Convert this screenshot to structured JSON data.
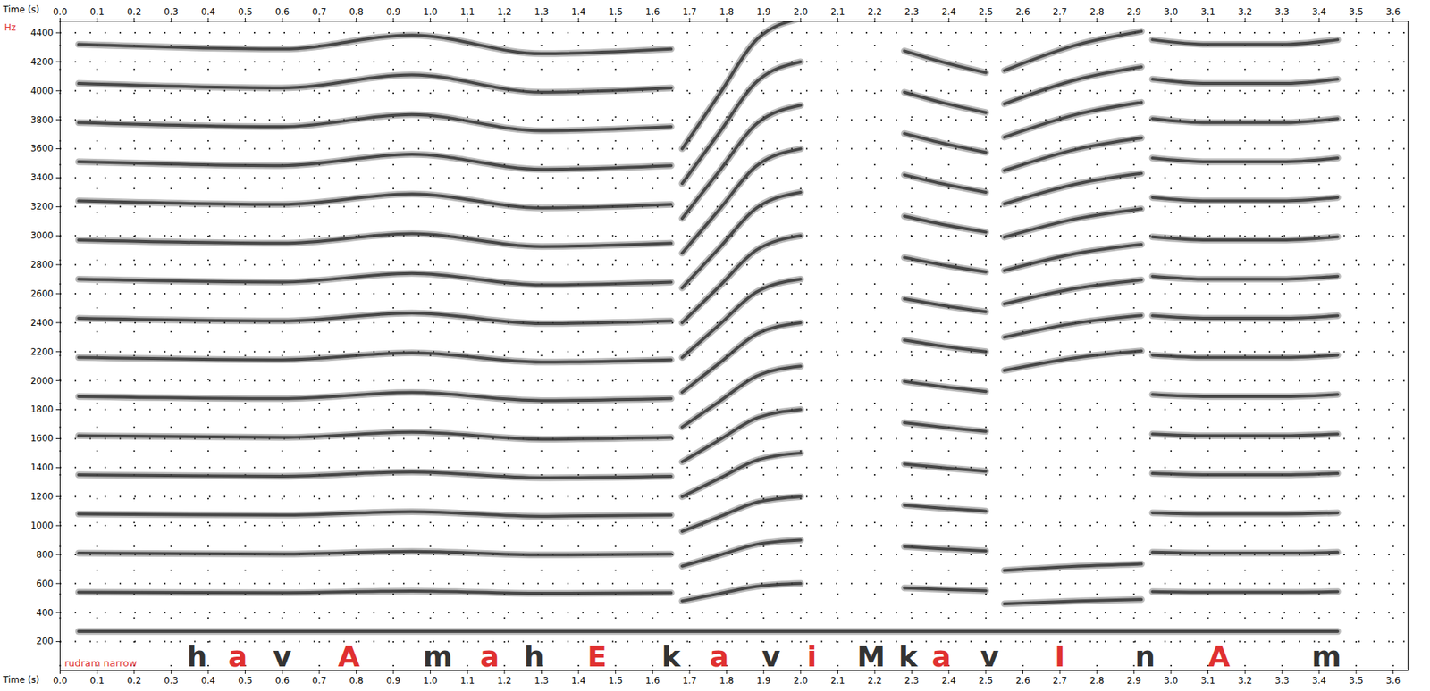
{
  "chart_data": {
    "type": "spectrogram",
    "xlabel": "Time (s)",
    "ylabel": "Hz",
    "caption": "rudram narrow",
    "xlim": [
      0,
      3.64
    ],
    "ylim": [
      0,
      4480
    ],
    "xticks": [
      {
        "value": 0,
        "label": "0.0"
      },
      0.1,
      0.2,
      0.3,
      0.4,
      0.5,
      0.6,
      0.7,
      0.8,
      0.9,
      {
        "value": 1,
        "label": "1.0"
      },
      1.1,
      1.2,
      1.3,
      1.4,
      1.5,
      1.6,
      1.7,
      1.8,
      1.9,
      {
        "value": 2,
        "label": "2.0"
      },
      2.1,
      2.2,
      2.3,
      2.4,
      2.5,
      2.6,
      2.7,
      2.8,
      2.9,
      {
        "value": 3,
        "label": "3.0"
      },
      3.1,
      3.2,
      3.3,
      3.4,
      3.5,
      3.6
    ],
    "yticks": [
      200,
      400,
      600,
      800,
      1000,
      1200,
      1400,
      1600,
      1800,
      2000,
      2200,
      2400,
      2600,
      2800,
      3000,
      3200,
      3400,
      3600,
      3800,
      4000,
      4200,
      4400
    ],
    "grid": true,
    "color": "#333333",
    "segments": [
      {
        "x": [
          0.05,
          3.45
        ],
        "tracks": [
          [
            270,
            270
          ]
        ]
      },
      {
        "x": [
          0.05,
          0.6,
          0.95,
          1.3,
          1.65
        ],
        "tracks": [
          [
            540,
            536,
            548,
            532,
            536
          ],
          [
            810,
            804,
            822,
            798,
            804
          ],
          [
            1080,
            1072,
            1096,
            1064,
            1072
          ],
          [
            1350,
            1340,
            1370,
            1330,
            1340
          ],
          [
            1620,
            1608,
            1644,
            1596,
            1608
          ],
          [
            1890,
            1876,
            1918,
            1862,
            1876
          ],
          [
            2160,
            2144,
            2192,
            2128,
            2144
          ],
          [
            2430,
            2412,
            2466,
            2394,
            2412
          ],
          [
            2700,
            2680,
            2740,
            2660,
            2680
          ],
          [
            2970,
            2948,
            3014,
            2926,
            2948
          ],
          [
            3240,
            3216,
            3288,
            3192,
            3216
          ],
          [
            3510,
            3484,
            3562,
            3458,
            3484
          ],
          [
            3780,
            3752,
            3836,
            3724,
            3752
          ],
          [
            4050,
            4020,
            4110,
            3990,
            4020
          ],
          [
            4320,
            4288,
            4384,
            4256,
            4288
          ]
        ]
      },
      {
        "x": [
          1.68,
          1.78,
          1.88,
          2.0
        ],
        "tracks": [
          [
            480,
            530,
            580,
            600
          ],
          [
            720,
            795,
            870,
            900
          ],
          [
            960,
            1060,
            1160,
            1200
          ],
          [
            1200,
            1325,
            1450,
            1500
          ],
          [
            1440,
            1590,
            1740,
            1800
          ],
          [
            1680,
            1855,
            2030,
            2100
          ],
          [
            1920,
            2120,
            2320,
            2400
          ],
          [
            2160,
            2385,
            2610,
            2700
          ],
          [
            2400,
            2650,
            2900,
            3000
          ],
          [
            2640,
            2915,
            3190,
            3300
          ],
          [
            2880,
            3180,
            3480,
            3600
          ],
          [
            3120,
            3445,
            3770,
            3900
          ],
          [
            3360,
            3710,
            4060,
            4200
          ],
          [
            3600,
            3975,
            4350,
            4500
          ]
        ]
      },
      {
        "x": [
          2.28,
          2.38,
          2.5
        ],
        "tracks": [
          [
            570,
            560,
            550
          ],
          [
            855,
            840,
            825
          ],
          [
            1140,
            1120,
            1100
          ],
          [
            1425,
            1400,
            1375
          ],
          [
            1710,
            1680,
            1650
          ],
          [
            1995,
            1960,
            1925
          ],
          [
            2280,
            2240,
            2200
          ],
          [
            2565,
            2520,
            2475
          ],
          [
            2850,
            2800,
            2750
          ],
          [
            3135,
            3080,
            3025
          ],
          [
            3420,
            3360,
            3300
          ],
          [
            3705,
            3640,
            3575
          ],
          [
            3990,
            3920,
            3850
          ],
          [
            4275,
            4200,
            4125
          ]
        ]
      },
      {
        "x": [
          2.55,
          2.75,
          2.92
        ],
        "tracks": [
          [
            460,
            480,
            490
          ],
          [
            690,
            720,
            735
          ],
          [
            2070,
            2160,
            2205
          ],
          [
            2300,
            2400,
            2450
          ],
          [
            2530,
            2640,
            2695
          ],
          [
            2760,
            2880,
            2940
          ],
          [
            2990,
            3120,
            3185
          ],
          [
            3220,
            3360,
            3430
          ],
          [
            3450,
            3600,
            3675
          ],
          [
            3680,
            3840,
            3920
          ],
          [
            3910,
            4080,
            4165
          ],
          [
            4140,
            4320,
            4410
          ]
        ]
      },
      {
        "x": [
          2.95,
          3.1,
          3.3,
          3.45
        ],
        "tracks": [
          [
            544,
            540,
            540,
            544
          ],
          [
            816,
            810,
            810,
            816
          ],
          [
            1088,
            1080,
            1080,
            1088
          ],
          [
            1360,
            1350,
            1350,
            1360
          ],
          [
            1632,
            1620,
            1620,
            1632
          ],
          [
            1904,
            1890,
            1890,
            1904
          ],
          [
            2176,
            2160,
            2160,
            2176
          ],
          [
            2448,
            2430,
            2430,
            2448
          ],
          [
            2720,
            2700,
            2700,
            2720
          ],
          [
            2992,
            2970,
            2970,
            2992
          ],
          [
            3264,
            3240,
            3240,
            3264
          ],
          [
            3536,
            3510,
            3510,
            3536
          ],
          [
            3808,
            3780,
            3780,
            3808
          ],
          [
            4080,
            4050,
            4050,
            4080
          ],
          [
            4352,
            4320,
            4320,
            4352
          ]
        ]
      }
    ],
    "annotations": [
      {
        "text": "h",
        "x": 0.37,
        "color": "#333333"
      },
      {
        "text": "a",
        "x": 0.48,
        "color": "#e03030"
      },
      {
        "text": "v",
        "x": 0.6,
        "color": "#333333"
      },
      {
        "text": "A",
        "x": 0.78,
        "color": "#e03030"
      },
      {
        "text": "m",
        "x": 1.02,
        "color": "#333333"
      },
      {
        "text": "a",
        "x": 1.16,
        "color": "#e03030"
      },
      {
        "text": "h",
        "x": 1.28,
        "color": "#333333"
      },
      {
        "text": "E",
        "x": 1.45,
        "color": "#e03030"
      },
      {
        "text": "k",
        "x": 1.65,
        "color": "#333333"
      },
      {
        "text": "a",
        "x": 1.78,
        "color": "#e03030"
      },
      {
        "text": "v",
        "x": 1.92,
        "color": "#333333"
      },
      {
        "text": "i",
        "x": 2.03,
        "color": "#e03030"
      },
      {
        "text": "M",
        "x": 2.19,
        "color": "#333333"
      },
      {
        "text": "k",
        "x": 2.29,
        "color": "#333333"
      },
      {
        "text": "a",
        "x": 2.38,
        "color": "#e03030"
      },
      {
        "text": "v",
        "x": 2.51,
        "color": "#333333"
      },
      {
        "text": "I",
        "x": 2.7,
        "color": "#e03030"
      },
      {
        "text": "n",
        "x": 2.93,
        "color": "#333333"
      },
      {
        "text": "A",
        "x": 3.13,
        "color": "#e03030"
      },
      {
        "text": "m",
        "x": 3.42,
        "color": "#333333"
      }
    ]
  }
}
